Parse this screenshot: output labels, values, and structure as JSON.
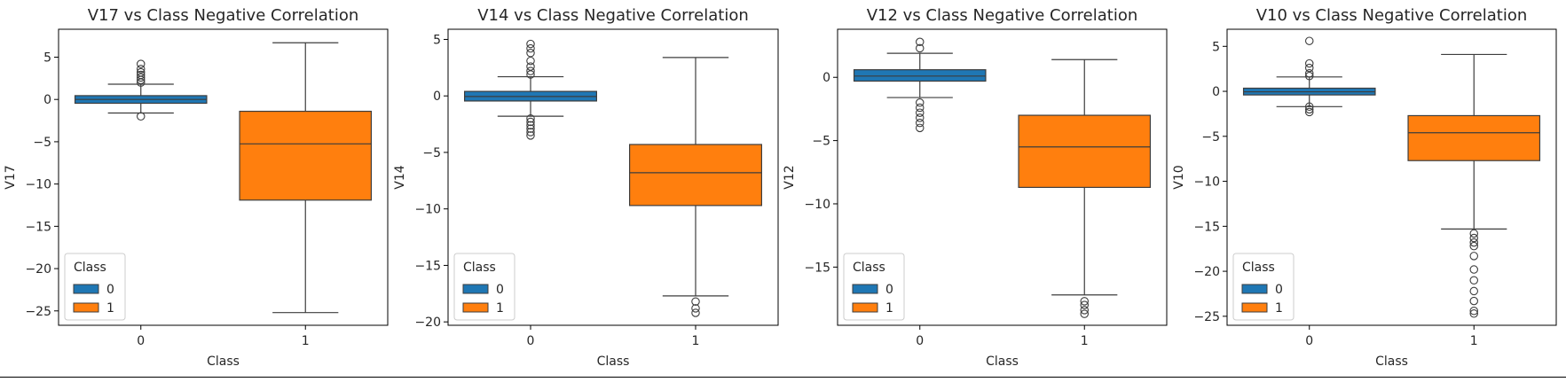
{
  "chart_data": [
    {
      "type": "box",
      "title": "V17 vs Class Negative Correlation",
      "xlabel": "Class",
      "ylabel": "V17",
      "categories": [
        "0",
        "1"
      ],
      "ylim": [
        -26.7,
        8.3
      ],
      "yticks": [
        5,
        0,
        -5,
        -10,
        -15,
        -20,
        -25
      ],
      "legend": {
        "title": "Class",
        "placement": "lower-left",
        "entries": [
          "0",
          "1"
        ]
      },
      "series": [
        {
          "name": "0",
          "color": "#1f77b4",
          "whisker_low": -1.6,
          "q1": -0.45,
          "median": 0.0,
          "q3": 0.45,
          "whisker_high": 1.8,
          "outliers": [
            -2.0,
            2.0,
            2.3,
            2.6,
            2.9,
            3.2,
            3.6,
            4.2
          ]
        },
        {
          "name": "1",
          "color": "#ff7f0e",
          "whisker_low": -25.2,
          "q1": -11.9,
          "median": -5.25,
          "q3": -1.4,
          "whisker_high": 6.7,
          "outliers": []
        }
      ]
    },
    {
      "type": "box",
      "title": "V14 vs Class Negative Correlation",
      "xlabel": "Class",
      "ylabel": "V14",
      "categories": [
        "0",
        "1"
      ],
      "ylim": [
        -20.3,
        5.9
      ],
      "yticks": [
        5,
        0,
        -5,
        -10,
        -15,
        -20
      ],
      "legend": {
        "title": "Class",
        "placement": "lower-left",
        "entries": [
          "0",
          "1"
        ]
      },
      "series": [
        {
          "name": "0",
          "color": "#1f77b4",
          "whisker_low": -1.8,
          "q1": -0.45,
          "median": -0.05,
          "q3": 0.4,
          "whisker_high": 1.7,
          "outliers": [
            -3.5,
            -3.2,
            -2.9,
            -2.6,
            -2.3,
            -2.0,
            1.9,
            2.2,
            2.6,
            3.1,
            3.8,
            4.2,
            4.6
          ]
        },
        {
          "name": "1",
          "color": "#ff7f0e",
          "whisker_low": -17.7,
          "q1": -9.7,
          "median": -6.8,
          "q3": -4.3,
          "whisker_high": 3.4,
          "outliers": [
            -18.2,
            -18.8,
            -19.2
          ]
        }
      ]
    },
    {
      "type": "box",
      "title": "V12 vs Class Negative Correlation",
      "xlabel": "Class",
      "ylabel": "V12",
      "categories": [
        "0",
        "1"
      ],
      "ylim": [
        -19.6,
        3.8
      ],
      "yticks": [
        0,
        -5,
        -10,
        -15
      ],
      "legend": {
        "title": "Class",
        "placement": "lower-left",
        "entries": [
          "0",
          "1"
        ]
      },
      "series": [
        {
          "name": "0",
          "color": "#1f77b4",
          "whisker_low": -1.6,
          "q1": -0.3,
          "median": 0.1,
          "q3": 0.6,
          "whisker_high": 1.9,
          "outliers": [
            -4.0,
            -3.6,
            -3.2,
            -2.8,
            -2.4,
            -2.0,
            2.3,
            2.8
          ]
        },
        {
          "name": "1",
          "color": "#ff7f0e",
          "whisker_low": -17.2,
          "q1": -8.7,
          "median": -5.5,
          "q3": -3.0,
          "whisker_high": 1.4,
          "outliers": [
            -17.7,
            -18.0,
            -18.4,
            -18.7
          ]
        }
      ]
    },
    {
      "type": "box",
      "title": "V10 vs Class Negative Correlation",
      "xlabel": "Class",
      "ylabel": "V10",
      "categories": [
        "0",
        "1"
      ],
      "ylim": [
        -26.0,
        6.9
      ],
      "yticks": [
        5,
        0,
        -5,
        -10,
        -15,
        -20,
        -25
      ],
      "legend": {
        "title": "Class",
        "placement": "lower-left",
        "entries": [
          "0",
          "1"
        ]
      },
      "series": [
        {
          "name": "0",
          "color": "#1f77b4",
          "whisker_low": -1.7,
          "q1": -0.4,
          "median": -0.05,
          "q3": 0.35,
          "whisker_high": 1.6,
          "outliers": [
            -2.3,
            -2.0,
            -1.7,
            1.7,
            2.0,
            2.6,
            3.1,
            5.6
          ]
        },
        {
          "name": "1",
          "color": "#ff7f0e",
          "whisker_low": -15.3,
          "q1": -7.7,
          "median": -4.6,
          "q3": -2.7,
          "whisker_high": 4.1,
          "outliers": [
            -15.8,
            -16.3,
            -16.8,
            -17.2,
            -18.3,
            -19.8,
            -21.0,
            -22.2,
            -23.3,
            -24.4,
            -24.7
          ]
        }
      ]
    }
  ]
}
